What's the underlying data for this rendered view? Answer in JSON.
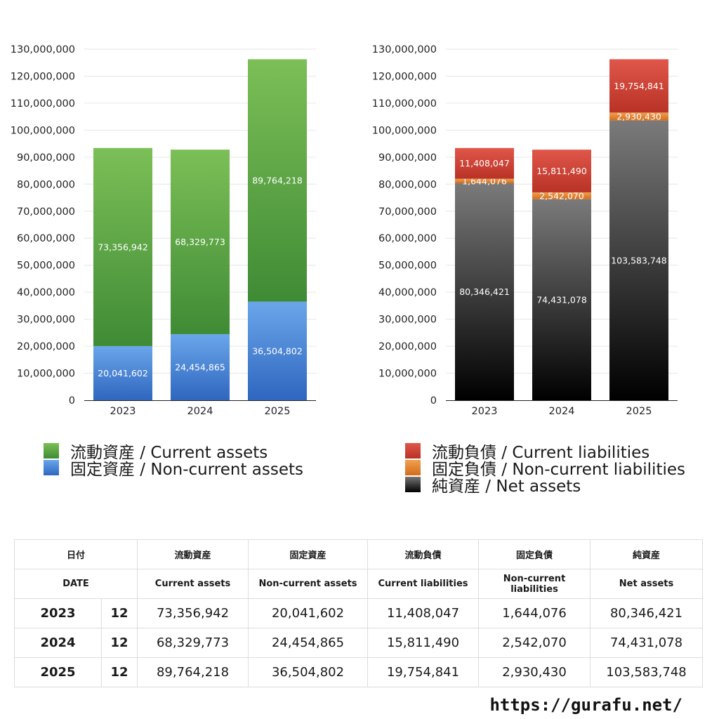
{
  "chart_data": [
    {
      "type": "bar",
      "stacked": true,
      "categories": [
        "2023",
        "2024",
        "2025"
      ],
      "series": [
        {
          "name": "固定資産 / Non-current assets",
          "values": [
            20041602,
            24454865,
            36504802
          ],
          "labels": [
            "20,041,602",
            "24,454,865",
            "36,504,802"
          ],
          "color_top": "#6aa6ea",
          "color_bottom": "#2f66bf"
        },
        {
          "name": "流動資産 / Current assets",
          "values": [
            73356942,
            68329773,
            89764218
          ],
          "labels": [
            "73,356,942",
            "68,329,773",
            "89,764,218"
          ],
          "color_top": "#7cbf57",
          "color_bottom": "#3f8b35"
        }
      ],
      "ylim": [
        0,
        130000000
      ],
      "yticks": [
        "0",
        "10,000,000",
        "20,000,000",
        "30,000,000",
        "40,000,000",
        "50,000,000",
        "60,000,000",
        "70,000,000",
        "80,000,000",
        "90,000,000",
        "100,000,000",
        "110,000,000",
        "120,000,000",
        "130,000,000"
      ],
      "grid": true,
      "legend": "bottom"
    },
    {
      "type": "bar",
      "stacked": true,
      "categories": [
        "2023",
        "2024",
        "2025"
      ],
      "series": [
        {
          "name": "純資産 / Net assets",
          "values": [
            80346421,
            74431078,
            103583748
          ],
          "labels": [
            "80,346,421",
            "74,431,078",
            "103,583,748"
          ],
          "color_top": "#7a7a7a",
          "color_bottom": "#000000"
        },
        {
          "name": "固定負債 / Non-current liabilities",
          "values": [
            1644076,
            2542070,
            2930430
          ],
          "labels": [
            "1,644,076",
            "2,542,070",
            "2,930,430"
          ],
          "color_top": "#f0a050",
          "color_bottom": "#d26c1c"
        },
        {
          "name": "流動負債 / Current liabilities",
          "values": [
            11408047,
            15811490,
            19754841
          ],
          "labels": [
            "11,408,047",
            "15,811,490",
            "19,754,841"
          ],
          "color_top": "#e0574a",
          "color_bottom": "#b83225"
        }
      ],
      "ylim": [
        0,
        130000000
      ],
      "yticks": [
        "0",
        "10,000,000",
        "20,000,000",
        "30,000,000",
        "40,000,000",
        "50,000,000",
        "60,000,000",
        "70,000,000",
        "80,000,000",
        "90,000,000",
        "100,000,000",
        "110,000,000",
        "120,000,000",
        "130,000,000"
      ],
      "grid": true,
      "legend": "bottom"
    }
  ],
  "legend_left": [
    "流動資産 / Current assets",
    "固定資産 / Non-current assets"
  ],
  "legend_right": [
    "流動負債 / Current liabilities",
    "固定負債 / Non-current liabilities",
    "純資産 / Net assets"
  ],
  "table": {
    "header_jp": [
      "日付",
      "流動資産",
      "固定資産",
      "流動負債",
      "固定負債",
      "純資産"
    ],
    "header_en": [
      "DATE",
      "Current assets",
      "Non-current assets",
      "Current liabilities",
      "Non-current liabilities",
      "Net assets"
    ],
    "rows": [
      {
        "year": "2023",
        "month": "12",
        "cells": [
          "73,356,942",
          "20,041,602",
          "11,408,047",
          "1,644,076",
          "80,346,421"
        ]
      },
      {
        "year": "2024",
        "month": "12",
        "cells": [
          "68,329,773",
          "24,454,865",
          "15,811,490",
          "2,542,070",
          "74,431,078"
        ]
      },
      {
        "year": "2025",
        "month": "12",
        "cells": [
          "89,764,218",
          "36,504,802",
          "19,754,841",
          "2,930,430",
          "103,583,748"
        ]
      }
    ]
  },
  "footer": "https://gurafu.net/"
}
